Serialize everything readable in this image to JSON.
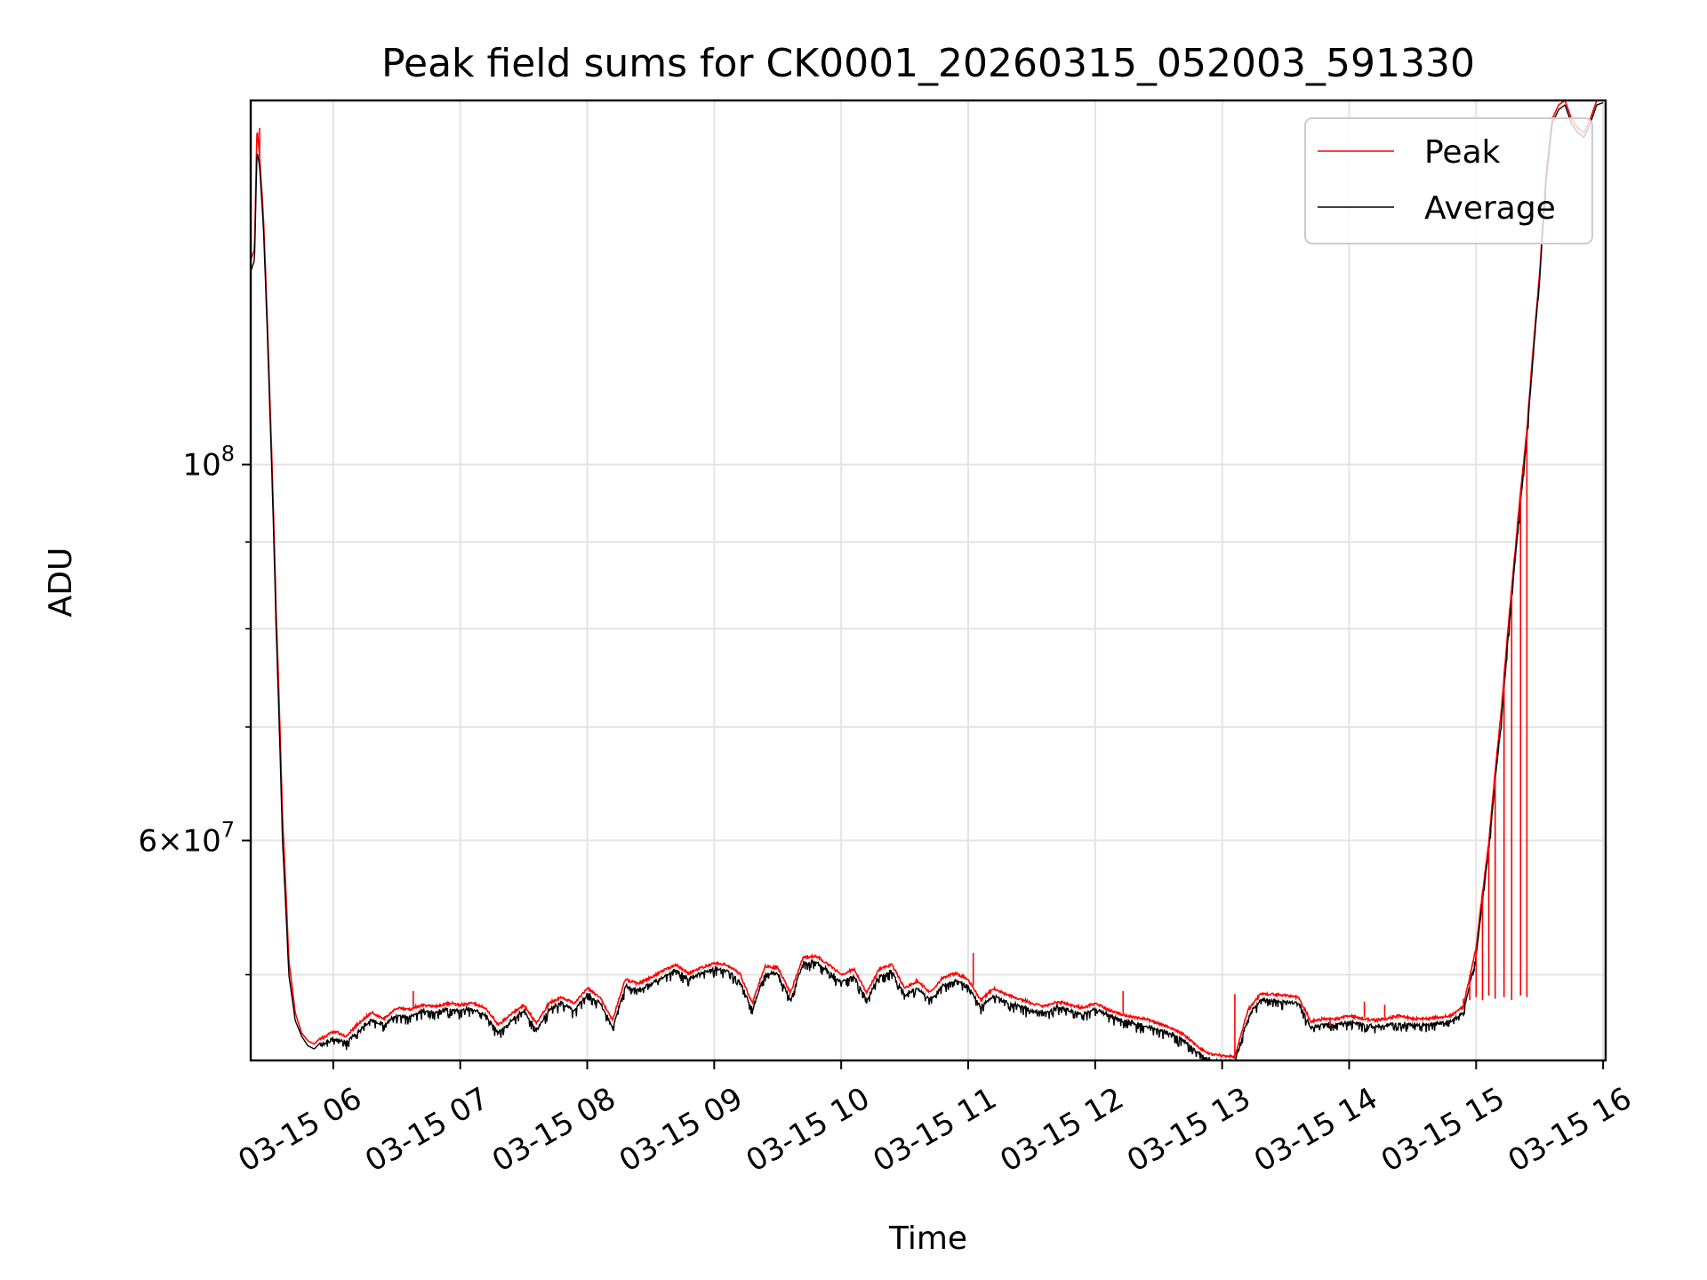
{
  "chart_data": {
    "type": "line",
    "title": "Peak field sums for CK0001_20260315_052003_591330",
    "xlabel": "Time",
    "ylabel": "ADU",
    "yscale": "log",
    "ylim": [
      44500000,
      164000000
    ],
    "xlim_hours": [
      5.35,
      16.02
    ],
    "grid": true,
    "legend_position": "upper right",
    "x_ticks": [
      {
        "hour": 6,
        "label": "03-15 06"
      },
      {
        "hour": 7,
        "label": "03-15 07"
      },
      {
        "hour": 8,
        "label": "03-15 08"
      },
      {
        "hour": 9,
        "label": "03-15 09"
      },
      {
        "hour": 10,
        "label": "03-15 10"
      },
      {
        "hour": 11,
        "label": "03-15 11"
      },
      {
        "hour": 12,
        "label": "03-15 12"
      },
      {
        "hour": 13,
        "label": "03-15 13"
      },
      {
        "hour": 14,
        "label": "03-15 14"
      },
      {
        "hour": 15,
        "label": "03-15 15"
      },
      {
        "hour": 16,
        "label": "03-15 16"
      }
    ],
    "y_ticks_major": [
      {
        "value": 100000000,
        "base": "10",
        "exp": "8",
        "mantissa": ""
      },
      {
        "value": 60000000,
        "base": "10",
        "exp": "7",
        "mantissa": "6×"
      }
    ],
    "y_ticks_minor": [
      50000000,
      70000000,
      80000000,
      90000000
    ],
    "series": [
      {
        "name": "Peak",
        "color": "#ff0000",
        "x_hours": [
          5.35,
          5.38,
          5.4,
          5.42,
          5.45,
          5.5,
          5.55,
          5.6,
          5.65,
          5.7,
          5.75,
          5.8,
          5.85,
          5.9,
          6.0,
          6.1,
          6.2,
          6.3,
          6.4,
          6.5,
          6.6,
          6.7,
          6.8,
          6.9,
          7.0,
          7.1,
          7.2,
          7.3,
          7.4,
          7.5,
          7.6,
          7.7,
          7.8,
          7.9,
          8.0,
          8.1,
          8.2,
          8.3,
          8.4,
          8.5,
          8.6,
          8.7,
          8.8,
          8.9,
          9.0,
          9.1,
          9.2,
          9.3,
          9.4,
          9.5,
          9.6,
          9.7,
          9.8,
          9.9,
          10.0,
          10.1,
          10.2,
          10.3,
          10.4,
          10.5,
          10.6,
          10.7,
          10.8,
          10.9,
          11.0,
          11.1,
          11.2,
          11.3,
          11.4,
          11.5,
          11.6,
          11.7,
          11.8,
          11.9,
          12.0,
          12.1,
          12.2,
          12.3,
          12.4,
          12.5,
          12.6,
          12.7,
          12.8,
          12.9,
          13.0,
          13.1,
          13.2,
          13.3,
          13.4,
          13.5,
          13.6,
          13.7,
          13.8,
          13.9,
          14.0,
          14.1,
          14.2,
          14.3,
          14.4,
          14.5,
          14.6,
          14.7,
          14.8,
          14.9,
          15.0,
          15.1,
          15.2,
          15.3,
          15.4,
          15.5,
          15.55,
          15.6,
          15.65,
          15.7,
          15.75,
          15.8,
          15.85,
          15.9,
          15.95,
          16.0
        ],
        "values": [
          132000000,
          134000000,
          158000000,
          152000000,
          140000000,
          110000000,
          82000000,
          62000000,
          51000000,
          47500000,
          46200000,
          45700000,
          45500000,
          45900000,
          46400000,
          46100000,
          46900000,
          47600000,
          47200000,
          47900000,
          47800000,
          48100000,
          48000000,
          48200000,
          48100000,
          48200000,
          47900000,
          46800000,
          47500000,
          48100000,
          46900000,
          48200000,
          48600000,
          48200000,
          49200000,
          48600000,
          47100000,
          49800000,
          49500000,
          49900000,
          50400000,
          50800000,
          50200000,
          50600000,
          50900000,
          50800000,
          50200000,
          48200000,
          50700000,
          50600000,
          48900000,
          51300000,
          51400000,
          50800000,
          50100000,
          50500000,
          48900000,
          50500000,
          50800000,
          49200000,
          49700000,
          48900000,
          49900000,
          50200000,
          49800000,
          48400000,
          49200000,
          48800000,
          48500000,
          48200000,
          48000000,
          48300000,
          48100000,
          47900000,
          48200000,
          47800000,
          47500000,
          47300000,
          47200000,
          46900000,
          46600000,
          46200000,
          45500000,
          45000000,
          44900000,
          44800000,
          47700000,
          48800000,
          48800000,
          48700000,
          48600000,
          47000000,
          47200000,
          47200000,
          47400000,
          47200000,
          47100000,
          47200000,
          47400000,
          47200000,
          47200000,
          47300000,
          47400000,
          48000000,
          52000000,
          60000000,
          72000000,
          88000000,
          105000000,
          130000000,
          148000000,
          160000000,
          163000000,
          164000000,
          160000000,
          158000000,
          157000000,
          160000000,
          164000000,
          164000000
        ]
      },
      {
        "name": "Average",
        "color": "#000000",
        "x_hours": [
          5.35,
          5.38,
          5.4,
          5.42,
          5.45,
          5.5,
          5.55,
          5.6,
          5.65,
          5.7,
          5.75,
          5.8,
          5.85,
          5.9,
          6.0,
          6.1,
          6.2,
          6.3,
          6.4,
          6.5,
          6.6,
          6.7,
          6.8,
          6.9,
          7.0,
          7.1,
          7.2,
          7.3,
          7.4,
          7.5,
          7.6,
          7.7,
          7.8,
          7.9,
          8.0,
          8.1,
          8.2,
          8.3,
          8.4,
          8.5,
          8.6,
          8.7,
          8.8,
          8.9,
          9.0,
          9.1,
          9.2,
          9.3,
          9.4,
          9.5,
          9.6,
          9.7,
          9.8,
          9.9,
          10.0,
          10.1,
          10.2,
          10.3,
          10.4,
          10.5,
          10.6,
          10.7,
          10.8,
          10.9,
          11.0,
          11.1,
          11.2,
          11.3,
          11.4,
          11.5,
          11.6,
          11.7,
          11.8,
          11.9,
          12.0,
          12.1,
          12.2,
          12.3,
          12.4,
          12.5,
          12.6,
          12.7,
          12.8,
          12.9,
          13.0,
          13.1,
          13.2,
          13.3,
          13.4,
          13.5,
          13.6,
          13.7,
          13.8,
          13.9,
          14.0,
          14.1,
          14.2,
          14.3,
          14.4,
          14.5,
          14.6,
          14.7,
          14.8,
          14.9,
          15.0,
          15.1,
          15.2,
          15.3,
          15.4,
          15.5,
          15.55,
          15.6,
          15.65,
          15.7,
          15.75,
          15.8,
          15.85,
          15.9,
          15.95,
          16.0
        ],
        "values": [
          130000000,
          132000000,
          153000000,
          150000000,
          138000000,
          108000000,
          80000000,
          60000000,
          50000000,
          47000000,
          46000000,
          45400000,
          45200000,
          45600000,
          46000000,
          45800000,
          46500000,
          47200000,
          46900000,
          47500000,
          47400000,
          47800000,
          47700000,
          47900000,
          47800000,
          47900000,
          47500000,
          46400000,
          47100000,
          47800000,
          46500000,
          47900000,
          48300000,
          47800000,
          48900000,
          48300000,
          46700000,
          49400000,
          49100000,
          49600000,
          50000000,
          50500000,
          49900000,
          50300000,
          50600000,
          50500000,
          49800000,
          47800000,
          50300000,
          50300000,
          48500000,
          51000000,
          51100000,
          50400000,
          49700000,
          50100000,
          48500000,
          50100000,
          50400000,
          48800000,
          49300000,
          48500000,
          49500000,
          49800000,
          49400000,
          48000000,
          48800000,
          48400000,
          48100000,
          47800000,
          47700000,
          48000000,
          47800000,
          47600000,
          47900000,
          47500000,
          47200000,
          47000000,
          46800000,
          46600000,
          46300000,
          45900000,
          45200000,
          44700000,
          44600000,
          44600000,
          47300000,
          48500000,
          48500000,
          48400000,
          48300000,
          46700000,
          46900000,
          46900000,
          47100000,
          46900000,
          46800000,
          46900000,
          47000000,
          46900000,
          46900000,
          47000000,
          47100000,
          47700000,
          51500000,
          59500000,
          71000000,
          87000000,
          104000000,
          129000000,
          147000000,
          159000000,
          162000000,
          163000000,
          159000000,
          157000000,
          156000000,
          159000000,
          163000000,
          163500000
        ]
      }
    ],
    "peak_spikes": [
      {
        "hour": 5.42,
        "value": 158000000
      },
      {
        "hour": 6.63,
        "value": 48900000
      },
      {
        "hour": 11.04,
        "value": 51500000
      },
      {
        "hour": 12.22,
        "value": 48900000
      },
      {
        "hour": 13.1,
        "value": 48700000
      },
      {
        "hour": 13.72,
        "value": 46800000
      },
      {
        "hour": 13.85,
        "value": 46600000
      },
      {
        "hour": 14.12,
        "value": 48200000
      },
      {
        "hour": 14.28,
        "value": 48000000
      },
      {
        "hour": 14.9,
        "value": 48400000
      },
      {
        "hour": 14.95,
        "value": 48300000
      },
      {
        "hour": 15.0,
        "value": 48500000
      },
      {
        "hour": 15.05,
        "value": 48300000
      },
      {
        "hour": 15.1,
        "value": 48600000
      },
      {
        "hour": 15.15,
        "value": 48400000
      },
      {
        "hour": 15.22,
        "value": 48500000
      },
      {
        "hour": 15.28,
        "value": 48300000
      },
      {
        "hour": 15.35,
        "value": 48600000
      },
      {
        "hour": 15.4,
        "value": 48500000
      }
    ]
  }
}
